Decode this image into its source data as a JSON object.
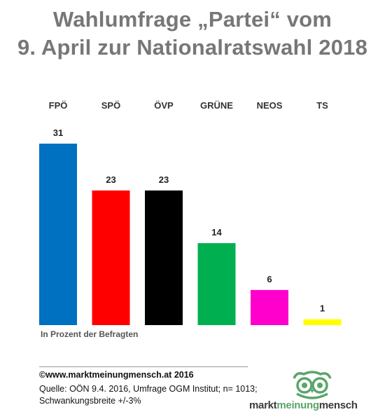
{
  "title_line1": "Wahlumfrage „Partei“ vom",
  "title_line2": "9. April zur Nationalratswahl 2018",
  "chart_data": {
    "type": "bar",
    "title": "Wahlumfrage „Partei“ vom 9. April zur Nationalratswahl 2018",
    "categories": [
      "FPÖ",
      "SPÖ",
      "ÖVP",
      "GRÜNE",
      "NEOS",
      "TS"
    ],
    "values": [
      31,
      23,
      23,
      14,
      6,
      1
    ],
    "colors": [
      "#0070c0",
      "#ff0000",
      "#000000",
      "#00b050",
      "#ff00cc",
      "#ffff00"
    ],
    "ylim": [
      0,
      31
    ],
    "grid": false,
    "legend": "none"
  },
  "note": "In Prozent der Befragten",
  "copyright": "©www.marktmeinungmensch.at 2016",
  "source": "Quelle: OÖN  9.4. 2016, Umfrage OGM Institut; n= 1013; Schwankungsbreite +/-3%",
  "logo": {
    "icon": "owl-icon",
    "word1": "markt",
    "word2": "meinung",
    "word3": "mensch",
    "green": "#5aa56a"
  }
}
